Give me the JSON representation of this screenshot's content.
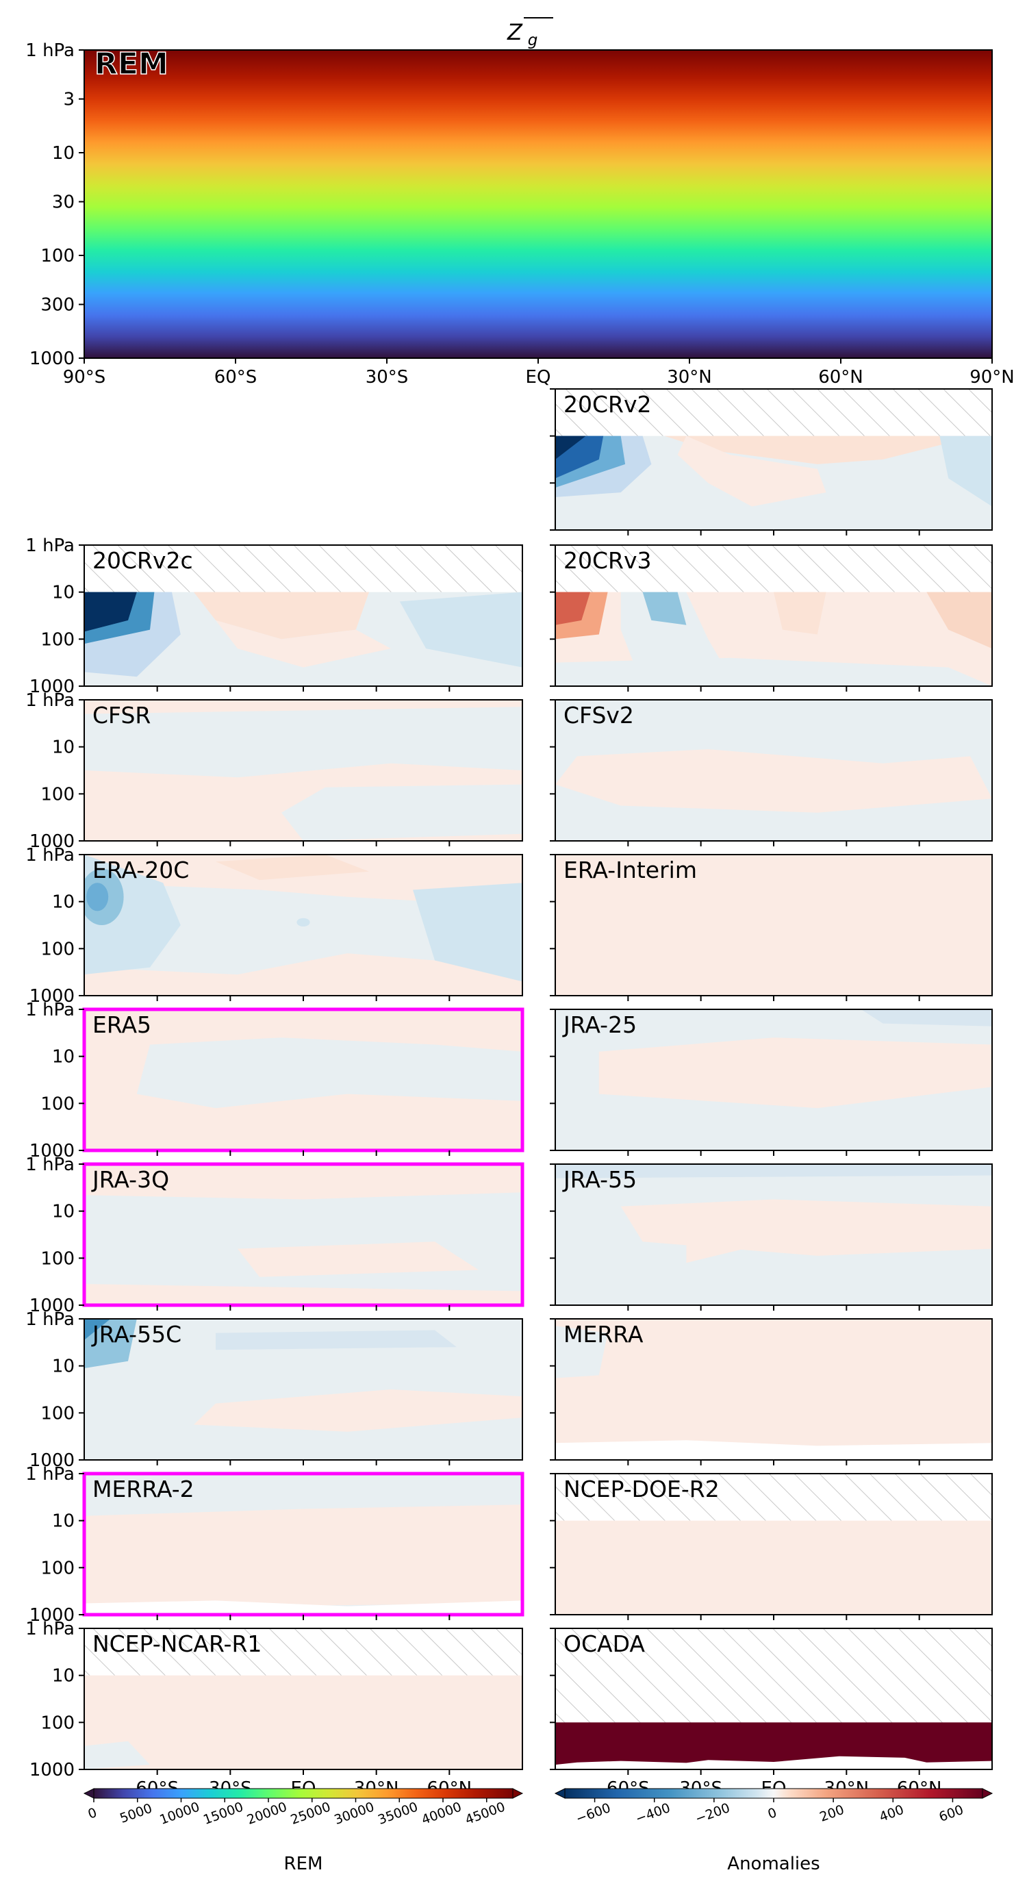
{
  "chart_data": {
    "type": "heatmap",
    "title": "Z_g",
    "title_display": {
      "base": "Z",
      "subscript": "g",
      "overline": true
    },
    "x_axis": {
      "range": [
        -90,
        90
      ],
      "ticks": [
        -90,
        -60,
        -30,
        0,
        30,
        60,
        90
      ],
      "tick_labels": [
        "90°S",
        "60°S",
        "30°S",
        "EQ",
        "30°N",
        "60°N",
        "90°N"
      ],
      "bottom_tick_labels": [
        "60°S",
        "30°S",
        "EQ",
        "30°N",
        "60°N"
      ]
    },
    "y_axis": {
      "scale": "log",
      "inverted": true,
      "range_hPa": [
        1,
        1000
      ],
      "ref_ticks": [
        1,
        3,
        10,
        30,
        100,
        300,
        1000
      ],
      "ref_tick_labels": [
        "1 hPa",
        "3",
        "10",
        "30",
        "100",
        "300",
        "1000"
      ],
      "panel_ticks": [
        1,
        10,
        100,
        1000
      ],
      "panel_tick_labels": [
        "1 hPa",
        "10",
        "100",
        "1000"
      ]
    },
    "reference_panel": {
      "label": "REM",
      "highlighted": true,
      "description_of_field": "zonal-mean geopotential height; increases with height from about 0 at 1000 hPa to about 48000 at 1 hPa"
    },
    "anomaly_panels": [
      {
        "label": "20CRv2",
        "column": "right",
        "top_hPa": 10,
        "highlighted": false,
        "y_labels": false
      },
      {
        "label": "20CRv2c",
        "column": "left",
        "top_hPa": 10,
        "highlighted": false,
        "y_labels": true
      },
      {
        "label": "20CRv3",
        "column": "right",
        "top_hPa": 10,
        "highlighted": false,
        "y_labels": false
      },
      {
        "label": "CFSR",
        "column": "left",
        "top_hPa": 1,
        "highlighted": false,
        "y_labels": true
      },
      {
        "label": "CFSv2",
        "column": "right",
        "top_hPa": 1,
        "highlighted": false,
        "y_labels": false
      },
      {
        "label": "ERA-20C",
        "column": "left",
        "top_hPa": 1,
        "highlighted": false,
        "y_labels": true
      },
      {
        "label": "ERA-Interim",
        "column": "right",
        "top_hPa": 1,
        "highlighted": false,
        "y_labels": false
      },
      {
        "label": "ERA5",
        "column": "left",
        "top_hPa": 1,
        "highlighted": true,
        "y_labels": true
      },
      {
        "label": "JRA-25",
        "column": "right",
        "top_hPa": 1,
        "highlighted": false,
        "y_labels": false
      },
      {
        "label": "JRA-3Q",
        "column": "left",
        "top_hPa": 1,
        "highlighted": true,
        "y_labels": true
      },
      {
        "label": "JRA-55",
        "column": "right",
        "top_hPa": 1,
        "highlighted": false,
        "y_labels": false
      },
      {
        "label": "JRA-55C",
        "column": "left",
        "top_hPa": 1,
        "highlighted": false,
        "y_labels": true
      },
      {
        "label": "MERRA",
        "column": "right",
        "top_hPa": 1,
        "highlighted": false,
        "y_labels": false
      },
      {
        "label": "MERRA-2",
        "column": "left",
        "top_hPa": 1,
        "highlighted": true,
        "y_labels": true
      },
      {
        "label": "NCEP-DOE-R2",
        "column": "right",
        "top_hPa": 10,
        "highlighted": false,
        "y_labels": false
      },
      {
        "label": "NCEP-NCAR-R1",
        "column": "left",
        "top_hPa": 10,
        "highlighted": false,
        "y_labels": true
      },
      {
        "label": "OCADA",
        "column": "right",
        "top_hPa": 100,
        "highlighted": false,
        "y_labels": false
      }
    ],
    "colorbars": [
      {
        "label": "REM",
        "colormap": "turbo",
        "range": [
          0,
          48000
        ],
        "ticks": [
          0,
          5000,
          10000,
          15000,
          20000,
          25000,
          30000,
          35000,
          40000,
          45000
        ],
        "tick_labels": [
          "0",
          "5000",
          "10000",
          "15000",
          "20000",
          "25000",
          "30000",
          "35000",
          "40000",
          "45000"
        ]
      },
      {
        "label": "Anomalies",
        "colormap": "RdBu_r",
        "range": [
          -700,
          700
        ],
        "ticks": [
          -600,
          -400,
          -200,
          0,
          200,
          400,
          600
        ],
        "tick_labels": [
          "−600",
          "−400",
          "−200",
          "0",
          "200",
          "400",
          "600"
        ]
      }
    ]
  },
  "colors": {
    "highlight_frame": "#ff00ff",
    "rem_label_fill": "#ff00ff",
    "missing_hatch": "#c8c8c8",
    "anomaly_near_zero_positive": "#fbebe4",
    "anomaly_near_zero_negative": "#e8eff2",
    "anomaly_max": "#67001f",
    "anomaly_min": "#053061"
  }
}
